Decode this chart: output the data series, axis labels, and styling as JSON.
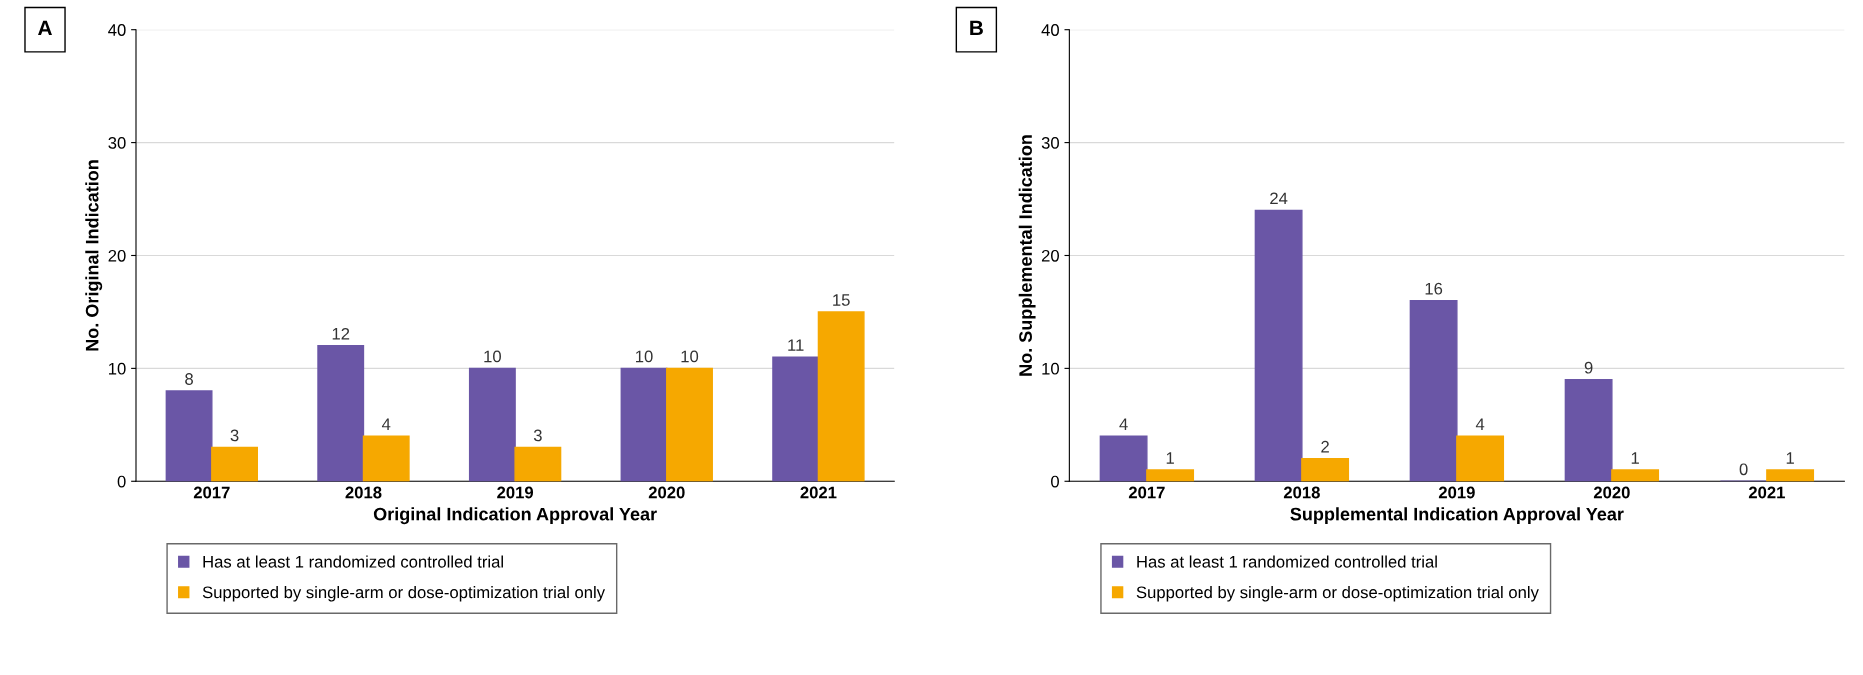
{
  "chart_data": [
    {
      "type": "bar",
      "annotations": [
        "A"
      ],
      "xlabel": "Original Indication Approval Year",
      "ylabel": "No. Original Indication",
      "categories": [
        "2017",
        "2018",
        "2019",
        "2020",
        "2021"
      ],
      "series": [
        {
          "name": "Has at least 1 randomized controlled trial",
          "color": "#6a56a6",
          "values": [
            8,
            12,
            10,
            10,
            11
          ]
        },
        {
          "name": "Supported by single-arm or dose-optimization trial only",
          "color": "#f6a800",
          "values": [
            3,
            4,
            3,
            10,
            15
          ]
        }
      ],
      "ylim": [
        0,
        40
      ],
      "yticks": [
        0,
        10,
        20,
        30,
        40
      ],
      "grid": "y",
      "legend": "bottom",
      "data_labels": true
    },
    {
      "type": "bar",
      "annotations": [
        "B"
      ],
      "xlabel": "Supplemental Indication Approval Year",
      "ylabel": "No. Supplemental Indication",
      "categories": [
        "2017",
        "2018",
        "2019",
        "2020",
        "2021"
      ],
      "series": [
        {
          "name": "Has at least 1 randomized controlled trial",
          "color": "#6a56a6",
          "values": [
            4,
            24,
            16,
            9,
            0
          ]
        },
        {
          "name": "Supported by single-arm or dose-optimization trial only",
          "color": "#f6a800",
          "values": [
            1,
            2,
            4,
            1,
            1
          ]
        }
      ],
      "ylim": [
        0,
        40
      ],
      "yticks": [
        0,
        10,
        20,
        30,
        40
      ],
      "grid": "y",
      "legend": "bottom",
      "data_labels": true
    }
  ]
}
